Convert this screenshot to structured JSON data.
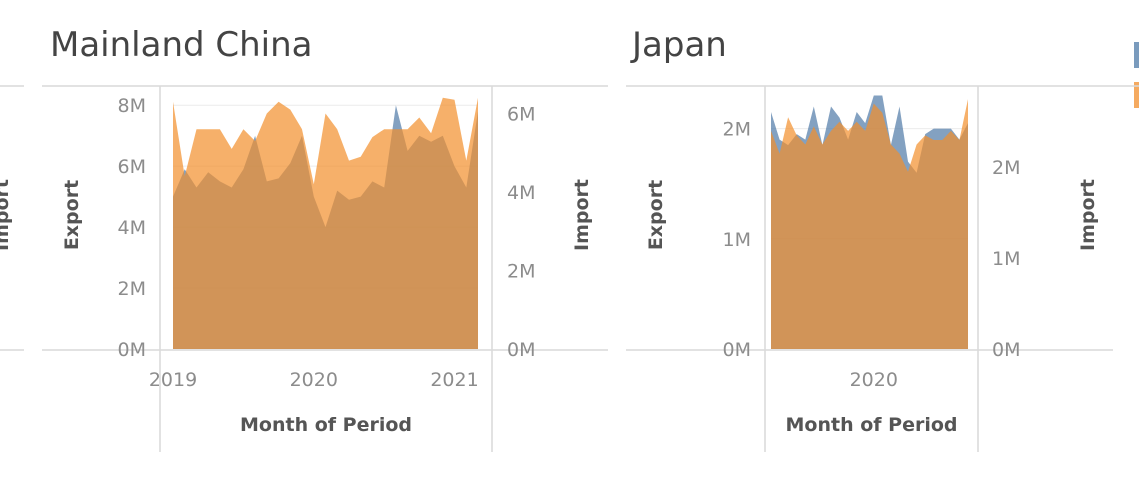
{
  "colors": {
    "export": "#4e79a7",
    "import": "#f28e2b",
    "overlap": "#c99a6b"
  },
  "chart_data": [
    {
      "type": "area",
      "title": "Mainland China",
      "xlabel": "Month of Period",
      "ylabel": "Export",
      "y2label": "Import",
      "x_ticks": [
        "2019",
        "2020",
        "2021"
      ],
      "y_ticks": [
        "0M",
        "2M",
        "4M",
        "6M",
        "8M"
      ],
      "y2_ticks": [
        "0M",
        "2M",
        "4M",
        "6M"
      ],
      "x_range": [
        "2019-01",
        "2021-03"
      ],
      "ylim": [
        0,
        8500000
      ],
      "y2lim": [
        0,
        6600000
      ],
      "grid": true,
      "series": [
        {
          "name": "Export",
          "axis": "left",
          "x": [
            "2019-01",
            "2019-02",
            "2019-03",
            "2019-04",
            "2019-05",
            "2019-06",
            "2019-07",
            "2019-08",
            "2019-09",
            "2019-10",
            "2019-11",
            "2019-12",
            "2020-01",
            "2020-02",
            "2020-03",
            "2020-04",
            "2020-05",
            "2020-06",
            "2020-07",
            "2020-08",
            "2020-09",
            "2020-10",
            "2020-11",
            "2020-12",
            "2021-01",
            "2021-02",
            "2021-03"
          ],
          "values": [
            5000000,
            5900000,
            5300000,
            5800000,
            5500000,
            5300000,
            5900000,
            7000000,
            5500000,
            5600000,
            6100000,
            7000000,
            5000000,
            4000000,
            5200000,
            4900000,
            5000000,
            5500000,
            5300000,
            8000000,
            6500000,
            7000000,
            6800000,
            7000000,
            6000000,
            5300000,
            7800000
          ]
        },
        {
          "name": "Import",
          "axis": "right",
          "x": [
            "2019-01",
            "2019-02",
            "2019-03",
            "2019-04",
            "2019-05",
            "2019-06",
            "2019-07",
            "2019-08",
            "2019-09",
            "2019-10",
            "2019-11",
            "2019-12",
            "2020-01",
            "2020-02",
            "2020-03",
            "2020-04",
            "2020-05",
            "2020-06",
            "2020-07",
            "2020-08",
            "2020-09",
            "2020-10",
            "2020-11",
            "2020-12",
            "2021-01",
            "2021-02",
            "2021-03"
          ],
          "values": [
            6300000,
            4400000,
            5600000,
            5600000,
            5600000,
            5100000,
            5600000,
            5300000,
            6000000,
            6300000,
            6100000,
            5600000,
            4200000,
            6000000,
            5600000,
            4800000,
            4900000,
            5400000,
            5600000,
            5600000,
            5600000,
            5900000,
            5500000,
            6400000,
            6350000,
            4800000,
            6400000
          ]
        }
      ]
    },
    {
      "type": "area",
      "title": "Japan",
      "xlabel": "Month of Period",
      "ylabel": "Export",
      "y2label": "Import",
      "x_ticks": [
        "2020"
      ],
      "y_ticks": [
        "0M",
        "1M",
        "2M"
      ],
      "y2_ticks": [
        "0M",
        "1M",
        "2M"
      ],
      "x_range": [
        "2019-01",
        "2020-12"
      ],
      "ylim": [
        0,
        2350000
      ],
      "y2lim": [
        0,
        2850000
      ],
      "grid": true,
      "series": [
        {
          "name": "Export",
          "axis": "left",
          "x": [
            "2019-01",
            "2019-02",
            "2019-03",
            "2019-04",
            "2019-05",
            "2019-06",
            "2019-07",
            "2019-08",
            "2019-09",
            "2019-10",
            "2019-11",
            "2019-12",
            "2020-01",
            "2020-02",
            "2020-03",
            "2020-04",
            "2020-05",
            "2020-06",
            "2020-07",
            "2020-08",
            "2020-09",
            "2020-10",
            "2020-11",
            "2020-12"
          ],
          "values": [
            2150000,
            1900000,
            1850000,
            1950000,
            1900000,
            2200000,
            1850000,
            2200000,
            2100000,
            1900000,
            2150000,
            2050000,
            2300000,
            2300000,
            1850000,
            2200000,
            1700000,
            1600000,
            1950000,
            2000000,
            2000000,
            2000000,
            1900000,
            2050000
          ]
        },
        {
          "name": "Import",
          "axis": "right",
          "x": [
            "2019-01",
            "2019-02",
            "2019-03",
            "2019-04",
            "2019-05",
            "2019-06",
            "2019-07",
            "2019-08",
            "2019-09",
            "2019-10",
            "2019-11",
            "2019-12",
            "2020-01",
            "2020-02",
            "2020-03",
            "2020-04",
            "2020-05",
            "2020-06",
            "2020-07",
            "2020-08",
            "2020-09",
            "2020-10",
            "2020-11",
            "2020-12"
          ],
          "values": [
            2400000,
            2150000,
            2550000,
            2350000,
            2250000,
            2450000,
            2250000,
            2400000,
            2500000,
            2400000,
            2500000,
            2400000,
            2700000,
            2600000,
            2250000,
            2150000,
            1950000,
            2250000,
            2350000,
            2300000,
            2300000,
            2400000,
            2300000,
            2750000
          ]
        }
      ]
    }
  ],
  "left_fragment": {
    "ylabel": "Import"
  },
  "right_fragment": {
    "legend_swatches": [
      "#4e79a7",
      "#f28e2b"
    ]
  }
}
